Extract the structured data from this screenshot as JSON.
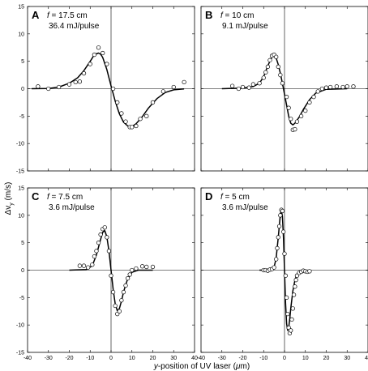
{
  "figure": {
    "ylabel_main": "Δv",
    "ylabel_sub": "y",
    "ylabel_unit": "(m/s)",
    "xlabel_italic": "y",
    "xlabel_rest": "-position of UV laser (",
    "xlabel_mu": "μ",
    "xlabel_end": "m)"
  },
  "chart_data": [
    {
      "type": "scatter",
      "panel": "A",
      "f_symbol": "f",
      "f_text": " = 17.5 cm",
      "energy": "36.4 mJ/pulse",
      "xlim": [
        -40,
        40
      ],
      "ylim": [
        -15,
        15
      ],
      "xticks": [
        -40,
        -30,
        -20,
        -10,
        0,
        10,
        20,
        30,
        40
      ],
      "yticks": [
        -15,
        -10,
        -5,
        0,
        5,
        10,
        15
      ],
      "show_x_ticklabels": false,
      "show_y_ticklabels": true,
      "points": [
        [
          -35,
          0.4
        ],
        [
          -30,
          0.0
        ],
        [
          -25,
          0.3
        ],
        [
          -20,
          0.8
        ],
        [
          -17,
          1.2
        ],
        [
          -15,
          1.3
        ],
        [
          -13,
          2.8
        ],
        [
          -10,
          4.5
        ],
        [
          -8,
          6.2
        ],
        [
          -6,
          7.5
        ],
        [
          -4,
          6.5
        ],
        [
          -2,
          4.5
        ],
        [
          1,
          0.0
        ],
        [
          3,
          -2.5
        ],
        [
          5,
          -4.5
        ],
        [
          7,
          -6.0
        ],
        [
          9,
          -7.0
        ],
        [
          10,
          -7.0
        ],
        [
          12,
          -6.8
        ],
        [
          14,
          -5.5
        ],
        [
          17,
          -5.0
        ],
        [
          20,
          -2.5
        ],
        [
          25,
          -0.5
        ],
        [
          30,
          0.3
        ],
        [
          35,
          1.2
        ]
      ],
      "fit_curve": [
        [
          -38,
          0.0
        ],
        [
          -30,
          0.05
        ],
        [
          -25,
          0.3
        ],
        [
          -20,
          1.0
        ],
        [
          -16,
          2.0
        ],
        [
          -13,
          3.3
        ],
        [
          -10,
          5.0
        ],
        [
          -8,
          6.2
        ],
        [
          -6,
          6.5
        ],
        [
          -5,
          6.3
        ],
        [
          -4,
          5.7
        ],
        [
          -2,
          3.5
        ],
        [
          0,
          0.5
        ],
        [
          2,
          -2.3
        ],
        [
          4,
          -4.6
        ],
        [
          6,
          -6.1
        ],
        [
          8,
          -6.8
        ],
        [
          10,
          -6.9
        ],
        [
          12,
          -6.4
        ],
        [
          15,
          -5.1
        ],
        [
          18,
          -3.5
        ],
        [
          22,
          -1.8
        ],
        [
          26,
          -0.7
        ],
        [
          30,
          -0.2
        ],
        [
          35,
          -0.05
        ]
      ]
    },
    {
      "type": "scatter",
      "panel": "B",
      "f_symbol": "f",
      "f_text": " = 10 cm",
      "energy": "9.1 mJ/pulse",
      "xlim": [
        -40,
        40
      ],
      "ylim": [
        -15,
        15
      ],
      "xticks": [
        -40,
        -30,
        -20,
        -10,
        0,
        10,
        20,
        30,
        40
      ],
      "yticks": [
        -15,
        -10,
        -5,
        0,
        5,
        10,
        15
      ],
      "show_x_ticklabels": false,
      "show_y_ticklabels": false,
      "points": [
        [
          -25,
          0.5
        ],
        [
          -22,
          0.0
        ],
        [
          -20,
          0.3
        ],
        [
          -17,
          0.2
        ],
        [
          -15,
          0.8
        ],
        [
          -12,
          1.0
        ],
        [
          -10,
          2.0
        ],
        [
          -9,
          3.0
        ],
        [
          -8,
          4.0
        ],
        [
          -7,
          5.2
        ],
        [
          -6,
          6.0
        ],
        [
          -5,
          6.2
        ],
        [
          -4,
          5.8
        ],
        [
          -3,
          4.0
        ],
        [
          -2,
          2.5
        ],
        [
          -1,
          1.0
        ],
        [
          1,
          -1.5
        ],
        [
          2,
          -3.5
        ],
        [
          3,
          -5.5
        ],
        [
          4,
          -7.5
        ],
        [
          5,
          -7.4
        ],
        [
          6,
          -6.0
        ],
        [
          8,
          -5.0
        ],
        [
          10,
          -4.0
        ],
        [
          12,
          -2.5
        ],
        [
          14,
          -1.5
        ],
        [
          16,
          -0.5
        ],
        [
          18,
          0.0
        ],
        [
          20,
          0.2
        ],
        [
          22,
          0.3
        ],
        [
          25,
          0.4
        ],
        [
          28,
          0.3
        ],
        [
          30,
          0.4
        ],
        [
          33,
          0.4
        ]
      ],
      "fit_curve": [
        [
          -30,
          0.0
        ],
        [
          -20,
          0.1
        ],
        [
          -15,
          0.4
        ],
        [
          -12,
          1.0
        ],
        [
          -10,
          2.2
        ],
        [
          -8,
          4.2
        ],
        [
          -6,
          5.8
        ],
        [
          -5,
          6.0
        ],
        [
          -4,
          5.6
        ],
        [
          -3,
          4.4
        ],
        [
          -2,
          2.8
        ],
        [
          -1,
          1.0
        ],
        [
          0,
          -1.0
        ],
        [
          1,
          -3.0
        ],
        [
          2,
          -5.0
        ],
        [
          3,
          -6.3
        ],
        [
          4,
          -6.6
        ],
        [
          5,
          -6.3
        ],
        [
          7,
          -5.2
        ],
        [
          9,
          -3.8
        ],
        [
          12,
          -2.0
        ],
        [
          15,
          -0.8
        ],
        [
          20,
          -0.1
        ],
        [
          30,
          0.0
        ]
      ]
    },
    {
      "type": "scatter",
      "panel": "C",
      "f_symbol": "f",
      "f_text": " = 7.5 cm",
      "energy": "3.6 mJ/pulse",
      "xlim": [
        -40,
        40
      ],
      "ylim": [
        -15,
        15
      ],
      "xticks": [
        -40,
        -30,
        -20,
        -10,
        0,
        10,
        20,
        30,
        40
      ],
      "yticks": [
        -15,
        -10,
        -5,
        0,
        5,
        10,
        15
      ],
      "show_x_ticklabels": true,
      "show_y_ticklabels": true,
      "points": [
        [
          -15,
          0.8
        ],
        [
          -13,
          0.8
        ],
        [
          -11,
          0.5
        ],
        [
          -9,
          1.0
        ],
        [
          -8,
          2.5
        ],
        [
          -7,
          3.5
        ],
        [
          -6,
          5.0
        ],
        [
          -5,
          6.5
        ],
        [
          -4,
          7.5
        ],
        [
          -3,
          7.8
        ],
        [
          -2,
          6.0
        ],
        [
          -1,
          3.5
        ],
        [
          0,
          -1.0
        ],
        [
          1,
          -4.0
        ],
        [
          2,
          -6.5
        ],
        [
          3,
          -8.0
        ],
        [
          4,
          -7.5
        ],
        [
          5,
          -5.5
        ],
        [
          6,
          -4.0
        ],
        [
          7,
          -2.8
        ],
        [
          8,
          -1.5
        ],
        [
          9,
          -0.8
        ],
        [
          10,
          0.0
        ],
        [
          12,
          0.3
        ],
        [
          15,
          0.7
        ],
        [
          17,
          0.6
        ],
        [
          20,
          0.6
        ]
      ],
      "fit_curve": [
        [
          -20,
          0.0
        ],
        [
          -12,
          0.1
        ],
        [
          -9,
          0.8
        ],
        [
          -7,
          2.8
        ],
        [
          -5,
          5.6
        ],
        [
          -4,
          6.9
        ],
        [
          -3,
          7.2
        ],
        [
          -2,
          6.1
        ],
        [
          -1,
          3.5
        ],
        [
          0,
          0.0
        ],
        [
          1,
          -3.5
        ],
        [
          2,
          -6.2
        ],
        [
          3,
          -7.4
        ],
        [
          4,
          -7.0
        ],
        [
          5,
          -5.6
        ],
        [
          6,
          -4.0
        ],
        [
          7,
          -2.7
        ],
        [
          8,
          -1.6
        ],
        [
          10,
          -0.4
        ],
        [
          13,
          0.0
        ],
        [
          20,
          0.0
        ]
      ]
    },
    {
      "type": "scatter",
      "panel": "D",
      "f_symbol": "f",
      "f_text": " = 5 cm",
      "energy": "3.6 mJ/pulse",
      "xlim": [
        -40,
        40
      ],
      "ylim": [
        -15,
        15
      ],
      "xticks": [
        -40,
        -30,
        -20,
        -10,
        0,
        10,
        20,
        30,
        40
      ],
      "yticks": [
        -15,
        -10,
        -5,
        0,
        5,
        10,
        15
      ],
      "show_x_ticklabels": true,
      "show_y_ticklabels": false,
      "points": [
        [
          -10,
          0.0
        ],
        [
          -9,
          0.0
        ],
        [
          -8,
          -0.1
        ],
        [
          -7,
          0.1
        ],
        [
          -6,
          0.2
        ],
        [
          -5,
          0.5
        ],
        [
          -4,
          2.0
        ],
        [
          -3.5,
          4.0
        ],
        [
          -3,
          6.0
        ],
        [
          -2.5,
          8.0
        ],
        [
          -2,
          10.0
        ],
        [
          -1.5,
          11.0
        ],
        [
          -1,
          10.8
        ],
        [
          -0.5,
          7.0
        ],
        [
          0,
          3.0
        ],
        [
          0.5,
          -1.0
        ],
        [
          1,
          -5.0
        ],
        [
          1.5,
          -8.0
        ],
        [
          2,
          -10.5
        ],
        [
          2.5,
          -11.5
        ],
        [
          3,
          -11.0
        ],
        [
          3.5,
          -9.0
        ],
        [
          4,
          -7.0
        ],
        [
          4.5,
          -4.5
        ],
        [
          5,
          -3.0
        ],
        [
          5.5,
          -1.8
        ],
        [
          6,
          -1.0
        ],
        [
          7,
          -0.5
        ],
        [
          8,
          -0.3
        ],
        [
          9,
          -0.1
        ],
        [
          10,
          -0.2
        ],
        [
          11,
          -0.3
        ],
        [
          12,
          -0.2
        ]
      ],
      "fit_curve": [
        [
          -12,
          0.0
        ],
        [
          -6,
          0.05
        ],
        [
          -5,
          0.5
        ],
        [
          -4,
          2.2
        ],
        [
          -3,
          6.0
        ],
        [
          -2,
          10.2
        ],
        [
          -1.5,
          11.0
        ],
        [
          -1,
          9.8
        ],
        [
          -0.5,
          6.0
        ],
        [
          0,
          0.0
        ],
        [
          0.5,
          -6.0
        ],
        [
          1,
          -9.8
        ],
        [
          1.5,
          -11.0
        ],
        [
          2,
          -10.5
        ],
        [
          2.5,
          -9.0
        ],
        [
          3,
          -7.0
        ],
        [
          4,
          -3.8
        ],
        [
          5,
          -1.8
        ],
        [
          6,
          -0.7
        ],
        [
          8,
          -0.1
        ],
        [
          12,
          0.0
        ]
      ]
    }
  ]
}
